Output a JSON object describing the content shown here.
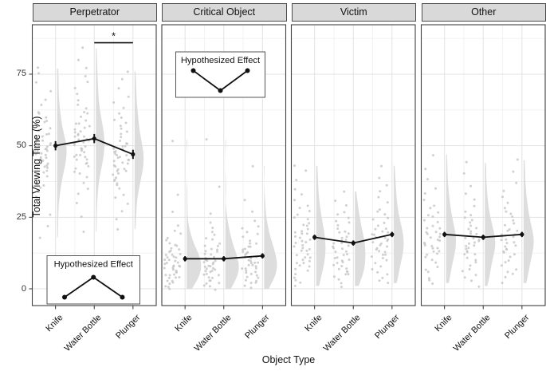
{
  "chart_data": {
    "type": "raincloud",
    "title": "",
    "xlabel": "Object Type",
    "ylabel": "Total Viewing Time (%)",
    "categories": [
      "Knife",
      "Water Bottle",
      "Plunger"
    ],
    "y_ticks": [
      0,
      25,
      50,
      75
    ],
    "ylim": [
      -6,
      92
    ],
    "grid": "major+minor, light gray on white, panel border dark",
    "point_color": "#c4c4c4",
    "violin_color": "#d9d9d9",
    "mean_line_color": "#111111",
    "strip_bg_color": "#d9d9d9",
    "facets": [
      {
        "label": "Perpetrator",
        "means": [
          50,
          52.5,
          47
        ],
        "se": [
          1.6,
          1.6,
          1.6
        ],
        "significance": {
          "label": "*",
          "from_index": 1,
          "to_index": 2,
          "y_value": 86
        },
        "inset": {
          "title": "Hypothesized Effect",
          "shape": "low-high-low",
          "position": "bottom-left",
          "values": [
            0,
            1,
            0
          ]
        },
        "points": [
          [
            18,
            22,
            26,
            30,
            32,
            34,
            35,
            36,
            37,
            38,
            39,
            40,
            41,
            41,
            42,
            42,
            43,
            43,
            44,
            44,
            45,
            45,
            46,
            46,
            47,
            47,
            47,
            48,
            48,
            48,
            49,
            49,
            50,
            50,
            50,
            51,
            51,
            52,
            52,
            53,
            53,
            54,
            54,
            55,
            56,
            57,
            58,
            59,
            60,
            61,
            62,
            64,
            66,
            69,
            72,
            75,
            77
          ],
          [
            20,
            25,
            30,
            33,
            35,
            37,
            39,
            40,
            41,
            42,
            43,
            44,
            44,
            45,
            45,
            46,
            46,
            47,
            47,
            48,
            48,
            49,
            49,
            50,
            50,
            51,
            51,
            52,
            52,
            52,
            53,
            53,
            54,
            54,
            55,
            55,
            56,
            56,
            57,
            58,
            58,
            59,
            60,
            61,
            62,
            63,
            64,
            66,
            68,
            70,
            72,
            74,
            77,
            80,
            84
          ],
          [
            21,
            24,
            27,
            30,
            32,
            33,
            35,
            36,
            37,
            38,
            38,
            39,
            40,
            40,
            41,
            41,
            42,
            42,
            43,
            43,
            44,
            44,
            45,
            45,
            45,
            46,
            46,
            47,
            47,
            47,
            48,
            48,
            49,
            49,
            50,
            50,
            51,
            51,
            52,
            53,
            54,
            55,
            56,
            57,
            58,
            59,
            60,
            61,
            63,
            65,
            67,
            70,
            73,
            76
          ]
        ]
      },
      {
        "label": "Critical Object",
        "means": [
          10.5,
          10.5,
          11.5
        ],
        "se": [
          0.9,
          0.9,
          0.9
        ],
        "significance": null,
        "inset": {
          "title": "Hypothesized Effect",
          "shape": "high-low-high",
          "position": "top-center",
          "values": [
            1,
            0,
            1
          ]
        },
        "points": [
          [
            0,
            1,
            1,
            2,
            2,
            3,
            3,
            4,
            4,
            4,
            5,
            5,
            5,
            6,
            6,
            6,
            7,
            7,
            7,
            8,
            8,
            8,
            8,
            9,
            9,
            9,
            10,
            10,
            10,
            11,
            11,
            11,
            12,
            12,
            12,
            13,
            13,
            14,
            14,
            15,
            15,
            16,
            17,
            18,
            19,
            20,
            22,
            27,
            33,
            52
          ],
          [
            0,
            1,
            1,
            2,
            2,
            3,
            3,
            4,
            4,
            5,
            5,
            5,
            6,
            6,
            6,
            7,
            7,
            7,
            8,
            8,
            8,
            9,
            9,
            9,
            10,
            10,
            10,
            11,
            11,
            12,
            12,
            13,
            13,
            14,
            14,
            15,
            15,
            16,
            17,
            18,
            19,
            20,
            21,
            23,
            26,
            36,
            52
          ],
          [
            0,
            1,
            2,
            2,
            3,
            3,
            4,
            4,
            5,
            5,
            6,
            6,
            6,
            7,
            7,
            7,
            8,
            8,
            8,
            9,
            9,
            9,
            10,
            10,
            11,
            11,
            11,
            12,
            12,
            13,
            13,
            14,
            14,
            15,
            15,
            16,
            16,
            17,
            18,
            19,
            20,
            21,
            22,
            24,
            27,
            31,
            43
          ]
        ]
      },
      {
        "label": "Victim",
        "means": [
          18,
          16,
          19
        ],
        "se": [
          0.9,
          0.9,
          0.9
        ],
        "significance": null,
        "inset": null,
        "points": [
          [
            1,
            2,
            3,
            4,
            5,
            6,
            7,
            8,
            8,
            9,
            9,
            10,
            10,
            11,
            11,
            12,
            12,
            13,
            13,
            14,
            14,
            15,
            15,
            16,
            16,
            17,
            17,
            18,
            18,
            19,
            19,
            20,
            20,
            21,
            22,
            22,
            23,
            24,
            25,
            26,
            27,
            28,
            29,
            31,
            33,
            35,
            38,
            41,
            43
          ],
          [
            1,
            2,
            3,
            4,
            5,
            5,
            6,
            6,
            7,
            7,
            8,
            8,
            9,
            9,
            10,
            10,
            11,
            11,
            12,
            12,
            13,
            13,
            14,
            14,
            15,
            15,
            16,
            16,
            17,
            17,
            18,
            18,
            19,
            20,
            20,
            21,
            22,
            23,
            24,
            25,
            26,
            27,
            29,
            31,
            34
          ],
          [
            2,
            3,
            4,
            5,
            6,
            7,
            8,
            9,
            10,
            11,
            11,
            12,
            12,
            13,
            13,
            14,
            14,
            15,
            15,
            16,
            16,
            17,
            17,
            18,
            18,
            19,
            19,
            20,
            20,
            21,
            21,
            22,
            23,
            24,
            25,
            26,
            27,
            28,
            30,
            32,
            34,
            36,
            39,
            43
          ]
        ]
      },
      {
        "label": "Other",
        "means": [
          19,
          18,
          19
        ],
        "se": [
          0.9,
          0.9,
          0.9
        ],
        "significance": null,
        "inset": null,
        "points": [
          [
            2,
            3,
            4,
            6,
            7,
            8,
            9,
            10,
            11,
            12,
            12,
            13,
            13,
            14,
            14,
            15,
            15,
            16,
            16,
            17,
            17,
            18,
            18,
            19,
            19,
            20,
            20,
            21,
            21,
            22,
            23,
            24,
            25,
            26,
            27,
            28,
            29,
            31,
            33,
            35,
            38,
            42,
            47
          ],
          [
            1,
            3,
            4,
            5,
            6,
            7,
            8,
            9,
            10,
            11,
            12,
            12,
            13,
            13,
            14,
            14,
            15,
            15,
            16,
            16,
            17,
            17,
            18,
            18,
            19,
            19,
            20,
            21,
            21,
            22,
            23,
            24,
            25,
            26,
            27,
            29,
            31,
            33,
            36,
            40,
            44
          ],
          [
            2,
            4,
            5,
            6,
            7,
            8,
            9,
            10,
            11,
            12,
            13,
            13,
            14,
            14,
            15,
            15,
            16,
            16,
            17,
            17,
            18,
            18,
            19,
            19,
            20,
            20,
            21,
            22,
            23,
            24,
            25,
            26,
            27,
            28,
            30,
            32,
            34,
            37,
            41,
            45
          ]
        ]
      }
    ]
  }
}
